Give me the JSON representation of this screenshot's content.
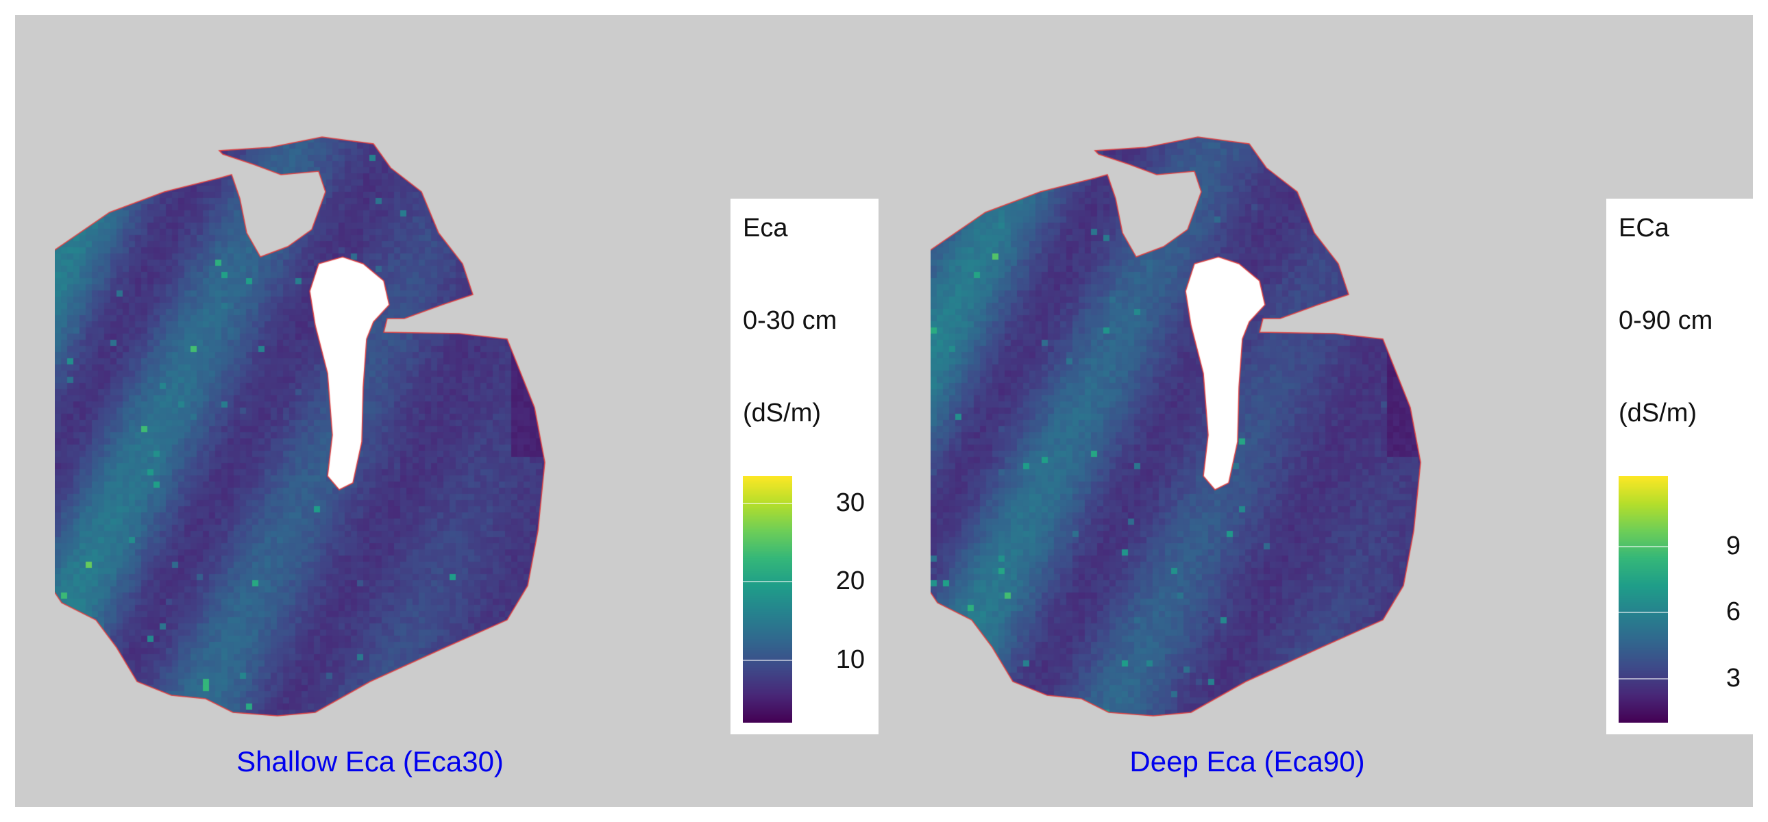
{
  "accent_color": "#0000ee",
  "boundary_color": "#e04040",
  "colormap": "viridis",
  "panels": [
    {
      "caption": "Shallow Eca (Eca30)",
      "legend": {
        "title_line1": "Eca",
        "title_line2": "0-30 cm",
        "title_line3": "(dS/m)",
        "ticks": [
          {
            "value": 30,
            "label": "30"
          },
          {
            "value": 20,
            "label": "20"
          },
          {
            "value": 10,
            "label": "10"
          }
        ],
        "min": 2,
        "max": 33.5
      },
      "seed": 17
    },
    {
      "caption": "Deep Eca (Eca90)",
      "legend": {
        "title_line1": "ECa",
        "title_line2": "0-90 cm",
        "title_line3": "(dS/m)",
        "ticks": [
          {
            "value": 9,
            "label": "9"
          },
          {
            "value": 6,
            "label": "6"
          },
          {
            "value": 3,
            "label": "3"
          }
        ],
        "min": 1,
        "max": 12.2
      },
      "seed": 91
    }
  ]
}
